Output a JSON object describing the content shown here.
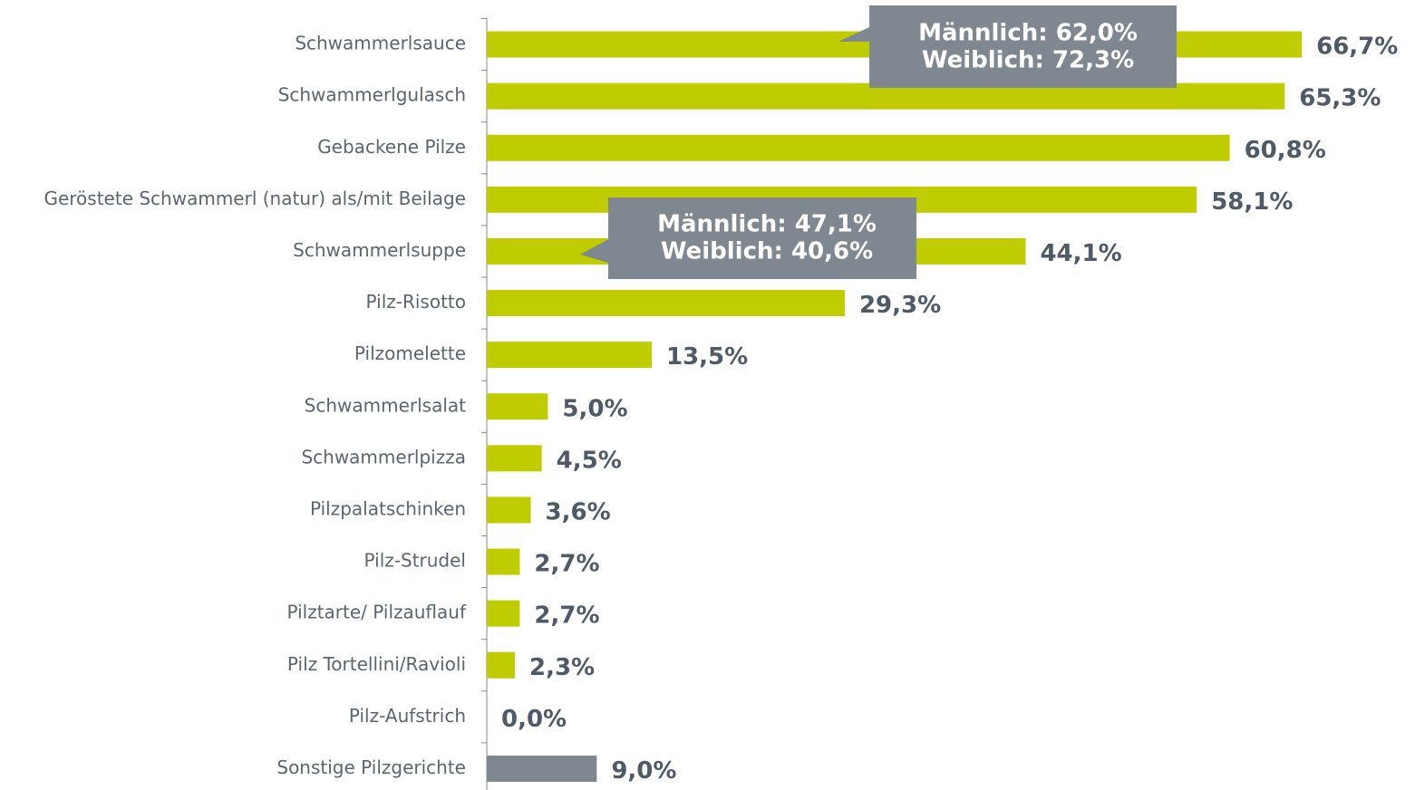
{
  "chart_data": {
    "type": "bar",
    "orientation": "horizontal",
    "categories": [
      "Schwammerlsauce",
      "Schwammerlgulasch",
      "Gebackene Pilze",
      "Geröstete Schwammerl (natur) als/mit Beilage",
      "Schwammerlsuppe",
      "Pilz-Risotto",
      "Pilzomelette",
      "Schwammerlsalat",
      "Schwammerlpizza",
      "Pilzpalatschinken",
      "Pilz-Strudel",
      "Pilztarte/ Pilzauflauf",
      "Pilz Tortellini/Ravioli",
      "Pilz-Aufstrich",
      "Sonstige Pilzgerichte"
    ],
    "values": [
      66.7,
      65.3,
      60.8,
      58.1,
      44.1,
      29.3,
      13.5,
      5.0,
      4.5,
      3.6,
      2.7,
      2.7,
      2.3,
      0.0,
      9.0
    ],
    "value_labels": [
      "66,7%",
      "65,3%",
      "60,8%",
      "58,1%",
      "44,1%",
      "29,3%",
      "13,5%",
      "5,0%",
      "4,5%",
      "3,6%",
      "2,7%",
      "2,7%",
      "2,3%",
      "0,0%",
      "9,0%"
    ],
    "colors": [
      "#bfcc00",
      "#bfcc00",
      "#bfcc00",
      "#bfcc00",
      "#bfcc00",
      "#bfcc00",
      "#bfcc00",
      "#bfcc00",
      "#bfcc00",
      "#bfcc00",
      "#bfcc00",
      "#bfcc00",
      "#bfcc00",
      "#bfcc00",
      "#7f8790"
    ],
    "annotations": [
      [
        "Männlich: 62,0%",
        "Weiblich: 72,3%"
      ],
      [
        "Männlich: 47,1%",
        "Weiblich: 40,6%"
      ]
    ]
  }
}
